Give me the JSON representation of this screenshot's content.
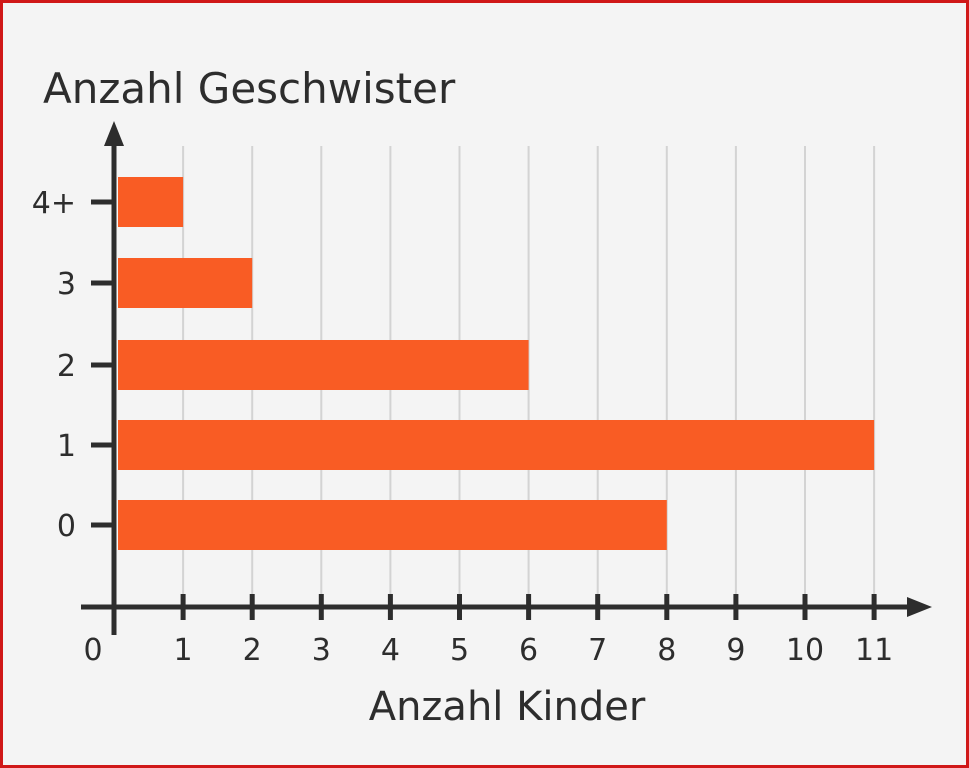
{
  "chart_data": {
    "type": "bar",
    "orientation": "horizontal",
    "categories": [
      "0",
      "1",
      "2",
      "3",
      "4+"
    ],
    "values": [
      8,
      11,
      6,
      2,
      1
    ],
    "xlabel": "Anzahl Kinder",
    "ylabel": "Anzahl Geschwister",
    "xlim": [
      0,
      11
    ],
    "x_ticks": [
      "0",
      "1",
      "2",
      "3",
      "4",
      "5",
      "6",
      "7",
      "8",
      "9",
      "10",
      "11"
    ],
    "grid": "vertical",
    "colors": {
      "bar": "#f95c24",
      "axis": "#2d2d2d",
      "grid": "#d3d3d3",
      "border": "#d01818",
      "background": "#f4f4f4"
    }
  }
}
